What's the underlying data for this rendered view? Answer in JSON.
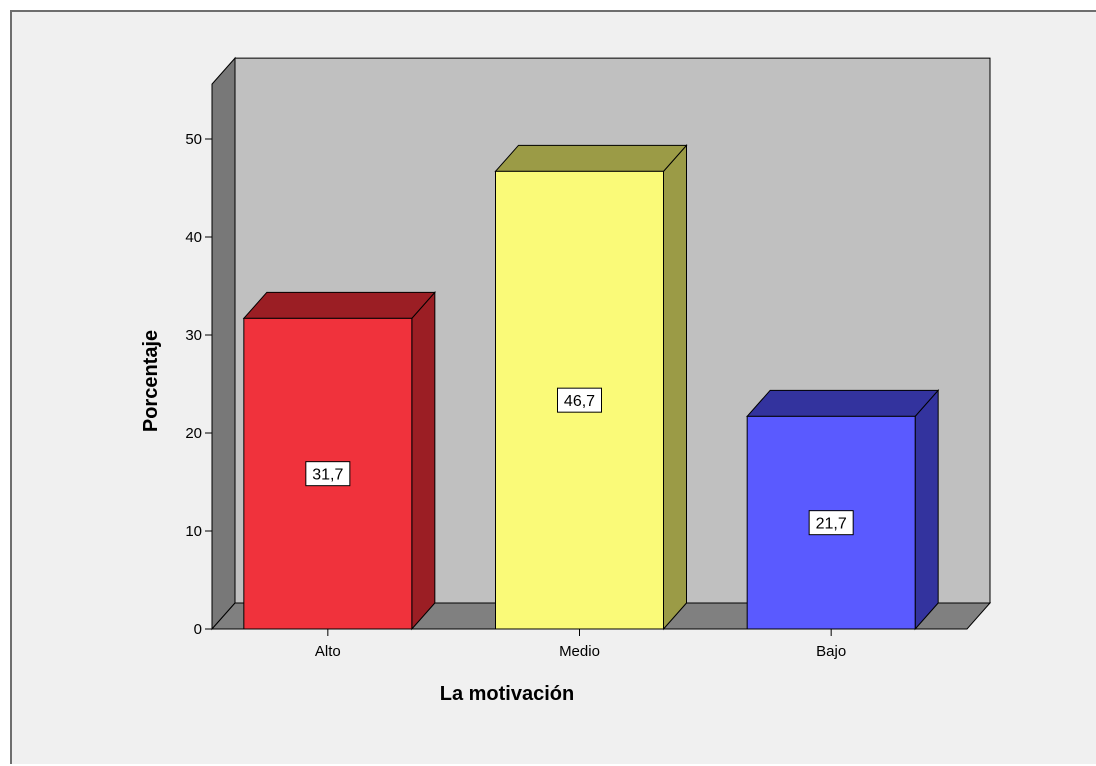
{
  "chart_data": {
    "type": "bar",
    "categories": [
      "Alto",
      "Medio",
      "Bajo"
    ],
    "values": [
      31.7,
      46.7,
      21.7
    ],
    "value_labels": [
      "31,7",
      "46,7",
      "21,7"
    ],
    "xlabel": "La motivación",
    "ylabel": "Porcentaje",
    "ylim": [
      0,
      50
    ],
    "yticks": [
      "0",
      "10",
      "20",
      "30",
      "40",
      "50"
    ],
    "colors": {
      "bars": [
        "#f0323c",
        "#fafa78",
        "#5a5aff"
      ],
      "bar_sides": [
        "#9b1e24",
        "#9b9b46",
        "#33339e"
      ],
      "back_wall": "#c0c0c0",
      "floor": "#808080",
      "side_wall": "#787878"
    },
    "grid": false,
    "legend": "none",
    "style": "3d"
  }
}
